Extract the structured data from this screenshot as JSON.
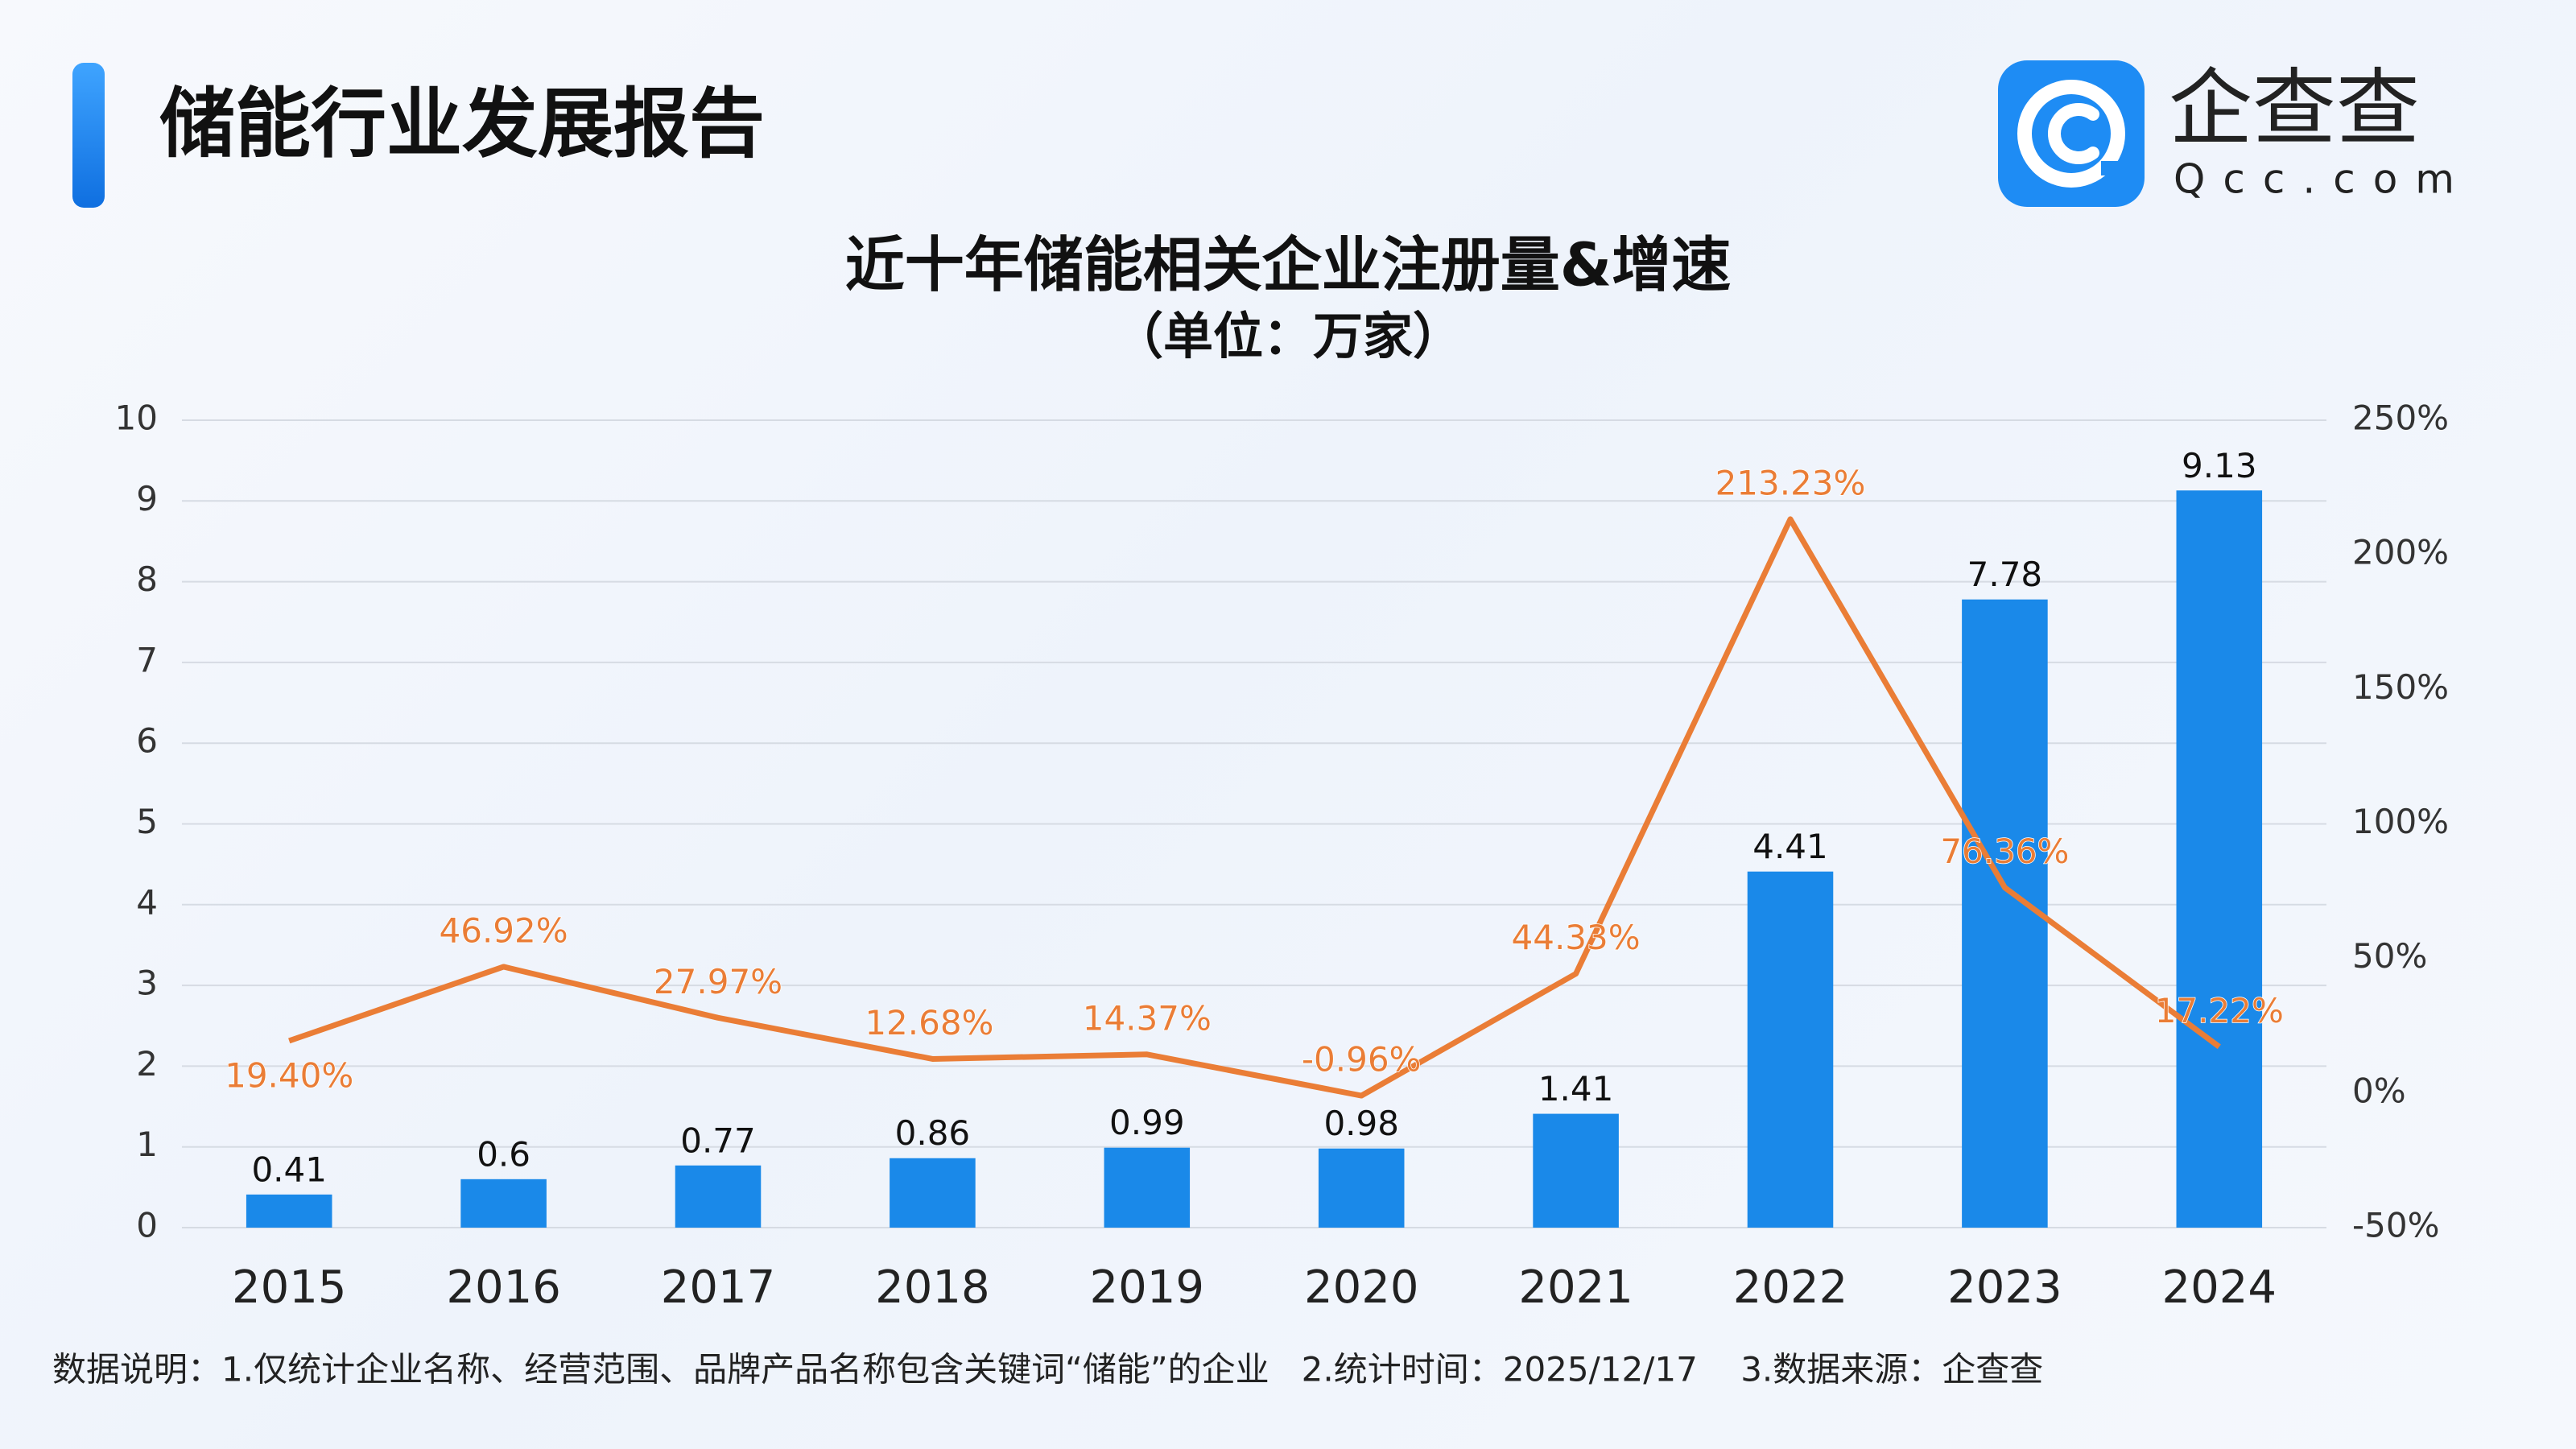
{
  "header": {
    "title": "储能行业发展报告"
  },
  "logo": {
    "name": "企查查",
    "domain": "Qcc.com"
  },
  "chart_data": {
    "type": "bar",
    "title": "近十年储能相关企业注册量&增速",
    "subtitle": "（单位：万家）",
    "categories": [
      "2015",
      "2016",
      "2017",
      "2018",
      "2019",
      "2020",
      "2021",
      "2022",
      "2023",
      "2024"
    ],
    "series": [
      {
        "type": "bar",
        "color": "#1a89e9",
        "values": [
          0.41,
          0.6,
          0.77,
          0.86,
          0.99,
          0.98,
          1.41,
          4.41,
          7.78,
          9.13
        ]
      },
      {
        "type": "line",
        "axis": "y2",
        "color": "#ea7d36",
        "values": [
          19.4,
          46.92,
          27.97,
          12.68,
          14.37,
          -0.96,
          44.33,
          213.23,
          76.36,
          17.22
        ],
        "value_labels": [
          "19.40%",
          "46.92%",
          "27.97%",
          "12.68%",
          "14.37%",
          "-0.96%",
          "44.33%",
          "213.23%",
          "76.36%",
          "17.22%"
        ]
      }
    ],
    "ylim": [
      0,
      10
    ],
    "yticks": [
      0,
      1,
      2,
      3,
      4,
      5,
      6,
      7,
      8,
      9,
      10
    ],
    "y2lim": [
      -50,
      250
    ],
    "y2ticks": [
      {
        "value": -50,
        "label": "-50%"
      },
      {
        "value": 0,
        "label": "0%"
      },
      {
        "value": 50,
        "label": "50%"
      },
      {
        "value": 100,
        "label": "100%"
      },
      {
        "value": 150,
        "label": "150%"
      },
      {
        "value": 200,
        "label": "200%"
      },
      {
        "value": 250,
        "label": "250%"
      }
    ],
    "grid": true
  },
  "footnote": "数据说明：1.仅统计企业名称、经营范围、品牌产品名称包含关键词“储能”的企业   2.统计时间：2025/12/17    3.数据来源：企查查"
}
